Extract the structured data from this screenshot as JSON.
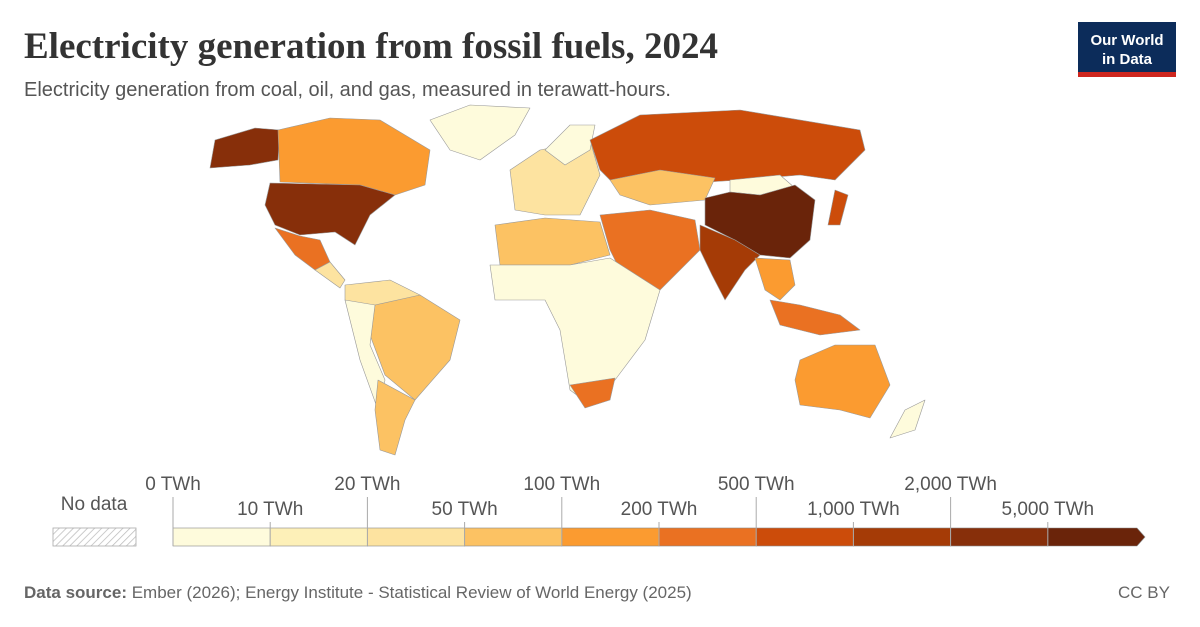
{
  "header": {
    "title": "Electricity generation from fossil fuels, 2024",
    "subtitle": "Electricity generation from coal, oil, and gas, measured in terawatt-hours.",
    "logo_line1": "Our World",
    "logo_line2": "in Data"
  },
  "legend": {
    "no_data": "No data",
    "ticks": [
      {
        "value": 0,
        "label": "0 TWh"
      },
      {
        "value": 10,
        "label": "10 TWh"
      },
      {
        "value": 20,
        "label": "20 TWh"
      },
      {
        "value": 50,
        "label": "50 TWh"
      },
      {
        "value": 100,
        "label": "100 TWh"
      },
      {
        "value": 200,
        "label": "200 TWh"
      },
      {
        "value": 500,
        "label": "500 TWh"
      },
      {
        "value": 1000,
        "label": "1,000 TWh"
      },
      {
        "value": 2000,
        "label": "2,000 TWh"
      },
      {
        "value": 5000,
        "label": "5,000 TWh"
      }
    ],
    "colors": [
      "#fefbdc",
      "#fdf0b8",
      "#fde3a0",
      "#fcc263",
      "#fb9b30",
      "#ea7122",
      "#cc4c0a",
      "#a53b06",
      "#872f0a",
      "#6a240a"
    ]
  },
  "footer": {
    "source_label": "Data source:",
    "source": "Ember (2026); Energy Institute - Statistical Review of World Energy (2025)",
    "license": "CC BY"
  }
}
